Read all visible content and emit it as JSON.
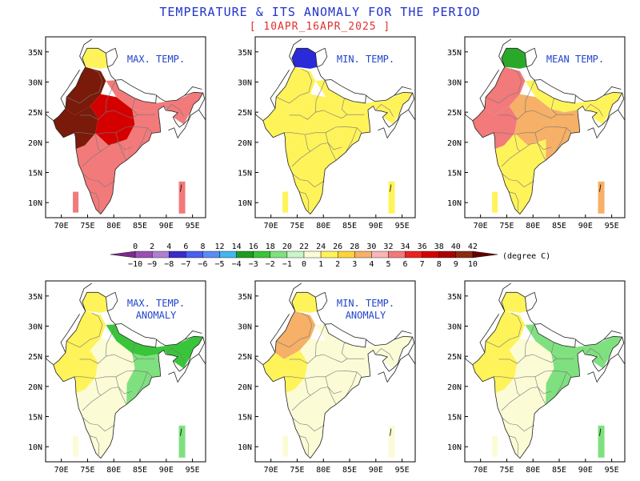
{
  "header": {
    "title": "TEMPERATURE & ITS ANOMALY FOR THE PERIOD",
    "period": "[ 10APR_16APR_2025 ]"
  },
  "axes": {
    "lon_ticks": [
      "70E",
      "75E",
      "80E",
      "85E",
      "90E",
      "95E"
    ],
    "lat_ticks": [
      "35N",
      "30N",
      "25N",
      "20N",
      "15N",
      "10N"
    ]
  },
  "panels": [
    {
      "id": "max-temp",
      "title_lines": [
        "MAX. TEMP."
      ],
      "type": "temperature",
      "field": {
        "nw": 5,
        "w": 5,
        "c": 4,
        "ne": 3,
        "e": 3,
        "s": 3,
        "far_north": 1
      }
    },
    {
      "id": "min-temp",
      "title_lines": [
        "MIN. TEMP."
      ],
      "type": "temperature",
      "field": {
        "nw": 1,
        "w": 1,
        "c": 1,
        "ne": 1,
        "e": 1,
        "s": 1,
        "far_north": -2
      }
    },
    {
      "id": "mean-temp",
      "title_lines": [
        "MEAN TEMP."
      ],
      "type": "temperature",
      "field": {
        "nw": 3,
        "w": 3,
        "c": 2,
        "ne": 1,
        "e": 2,
        "s": 1,
        "far_north": -1
      }
    },
    {
      "id": "max-temp-anomaly",
      "title_lines": [
        "MAX. TEMP.",
        "ANOMALY"
      ],
      "type": "anomaly",
      "field": {
        "nw": 1,
        "w": 1,
        "c": 0,
        "ne": -2,
        "e": -1,
        "s": 0,
        "far_north": 1
      }
    },
    {
      "id": "min-temp-anomaly",
      "title_lines": [
        "MIN. TEMP.",
        "ANOMALY"
      ],
      "type": "anomaly",
      "field": {
        "nw": 2,
        "w": 1,
        "c": 0,
        "ne": 0,
        "e": 0,
        "s": 0,
        "far_north": 1
      }
    },
    {
      "id": "mean-temp-anomaly",
      "title_lines": [],
      "type": "anomaly",
      "field": {
        "nw": 1,
        "w": 1,
        "c": 0,
        "ne": -1,
        "e": -1,
        "s": 0,
        "far_north": 1
      }
    }
  ],
  "colorbar": {
    "top_labels": [
      "0",
      "2",
      "4",
      "6",
      "8",
      "12",
      "14",
      "16",
      "18",
      "20",
      "22",
      "24",
      "26",
      "28",
      "30",
      "32",
      "34",
      "36",
      "38",
      "40",
      "42"
    ],
    "bottom_labels": [
      "-10",
      "-9",
      "-8",
      "-7",
      "-6",
      "-5",
      "-4",
      "-3",
      "-2",
      "-1",
      "0",
      "1",
      "2",
      "3",
      "4",
      "5",
      "6",
      "7",
      "8",
      "9",
      "10"
    ],
    "colors": [
      "#7d2a8c",
      "#9b4fb4",
      "#b17fd0",
      "#3a2cc8",
      "#4b5ef0",
      "#5a8cf4",
      "#42b6ef",
      "#1f9c1f",
      "#39c539",
      "#7fe07f",
      "#c9f4c9",
      "#fbfbd6",
      "#fff35a",
      "#ffd23a",
      "#f6b067",
      "#f8b6b6",
      "#f27a7a",
      "#ec2222",
      "#d40000",
      "#aa0000",
      "#8a2d0f",
      "#600000"
    ],
    "unit": "(degree C)"
  }
}
